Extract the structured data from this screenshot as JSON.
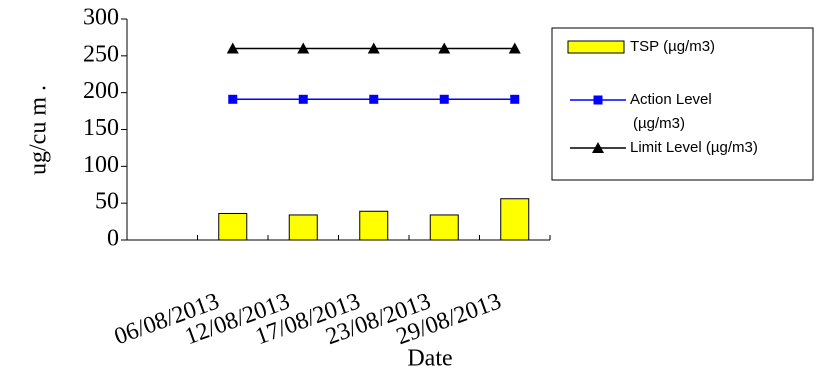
{
  "chart_data": {
    "type": "bar",
    "x_label": "Date",
    "y_label": "ug/cu m .",
    "categories": [
      null,
      "06/08/2013",
      "12/08/2013",
      "17/08/2013",
      "23/08/2013",
      "29/08/2013"
    ],
    "series": [
      {
        "name": "TSP (µg/m3)",
        "type": "bar",
        "color": "#ffff00",
        "values": [
          null,
          36,
          34,
          39,
          34,
          56
        ]
      },
      {
        "name": "Action Level (µg/m3)",
        "type": "line",
        "color": "#0000ff",
        "marker": "square",
        "values": [
          null,
          191,
          191,
          191,
          191,
          191
        ]
      },
      {
        "name": "Limit Level (µg/m3)",
        "type": "line",
        "color": "#000000",
        "marker": "triangle",
        "values": [
          null,
          260,
          260,
          260,
          260,
          260
        ]
      }
    ],
    "ylim": [
      0,
      300
    ],
    "yticks": [
      0,
      50,
      100,
      150,
      200,
      250,
      300
    ],
    "legend": "right"
  }
}
